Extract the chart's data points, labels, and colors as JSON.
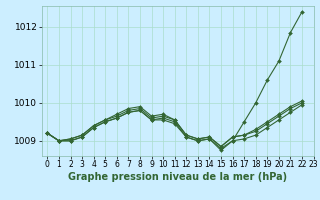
{
  "xlabel": "Graphe pression niveau de la mer (hPa)",
  "background_color": "#cceeff",
  "grid_color": "#aaddcc",
  "line_color": "#336633",
  "xlim": [
    -0.5,
    23
  ],
  "ylim": [
    1008.6,
    1012.55
  ],
  "yticks": [
    1009,
    1010,
    1011,
    1012
  ],
  "xticks": [
    0,
    1,
    2,
    3,
    4,
    5,
    6,
    7,
    8,
    9,
    10,
    11,
    12,
    13,
    14,
    15,
    16,
    17,
    18,
    19,
    20,
    21,
    22,
    23
  ],
  "series": [
    [
      1009.2,
      1009.0,
      1009.0,
      1009.1,
      1009.35,
      1009.5,
      1009.6,
      1009.75,
      1009.8,
      1009.55,
      1009.55,
      1009.45,
      1009.1,
      1009.0,
      1009.05,
      1008.75,
      1009.0,
      1009.5,
      1010.0,
      1010.6,
      1011.1,
      1011.85,
      1012.4
    ],
    [
      1009.2,
      1009.0,
      1009.0,
      1009.1,
      1009.35,
      1009.5,
      1009.6,
      1009.75,
      1009.8,
      1009.55,
      1009.6,
      1009.5,
      1009.1,
      1009.0,
      1009.05,
      1008.8,
      1009.0,
      1009.05,
      1009.15,
      1009.35,
      1009.55,
      1009.75,
      1009.95
    ],
    [
      1009.2,
      1009.0,
      1009.05,
      1009.15,
      1009.4,
      1009.55,
      1009.65,
      1009.8,
      1009.85,
      1009.6,
      1009.65,
      1009.55,
      1009.15,
      1009.05,
      1009.1,
      1008.85,
      1009.1,
      1009.15,
      1009.3,
      1009.5,
      1009.7,
      1009.9,
      1010.05
    ],
    [
      1009.2,
      1009.0,
      1009.05,
      1009.15,
      1009.4,
      1009.55,
      1009.7,
      1009.85,
      1009.9,
      1009.65,
      1009.7,
      1009.55,
      1009.15,
      1009.05,
      1009.1,
      1008.85,
      1009.1,
      1009.15,
      1009.25,
      1009.45,
      1009.65,
      1009.85,
      1010.0
    ]
  ],
  "marker": "D",
  "markersize": 2.0,
  "linewidth": 0.8,
  "fontsize_xlabel": 7,
  "fontsize_yticks": 6.5,
  "fontsize_xticks": 5.5
}
